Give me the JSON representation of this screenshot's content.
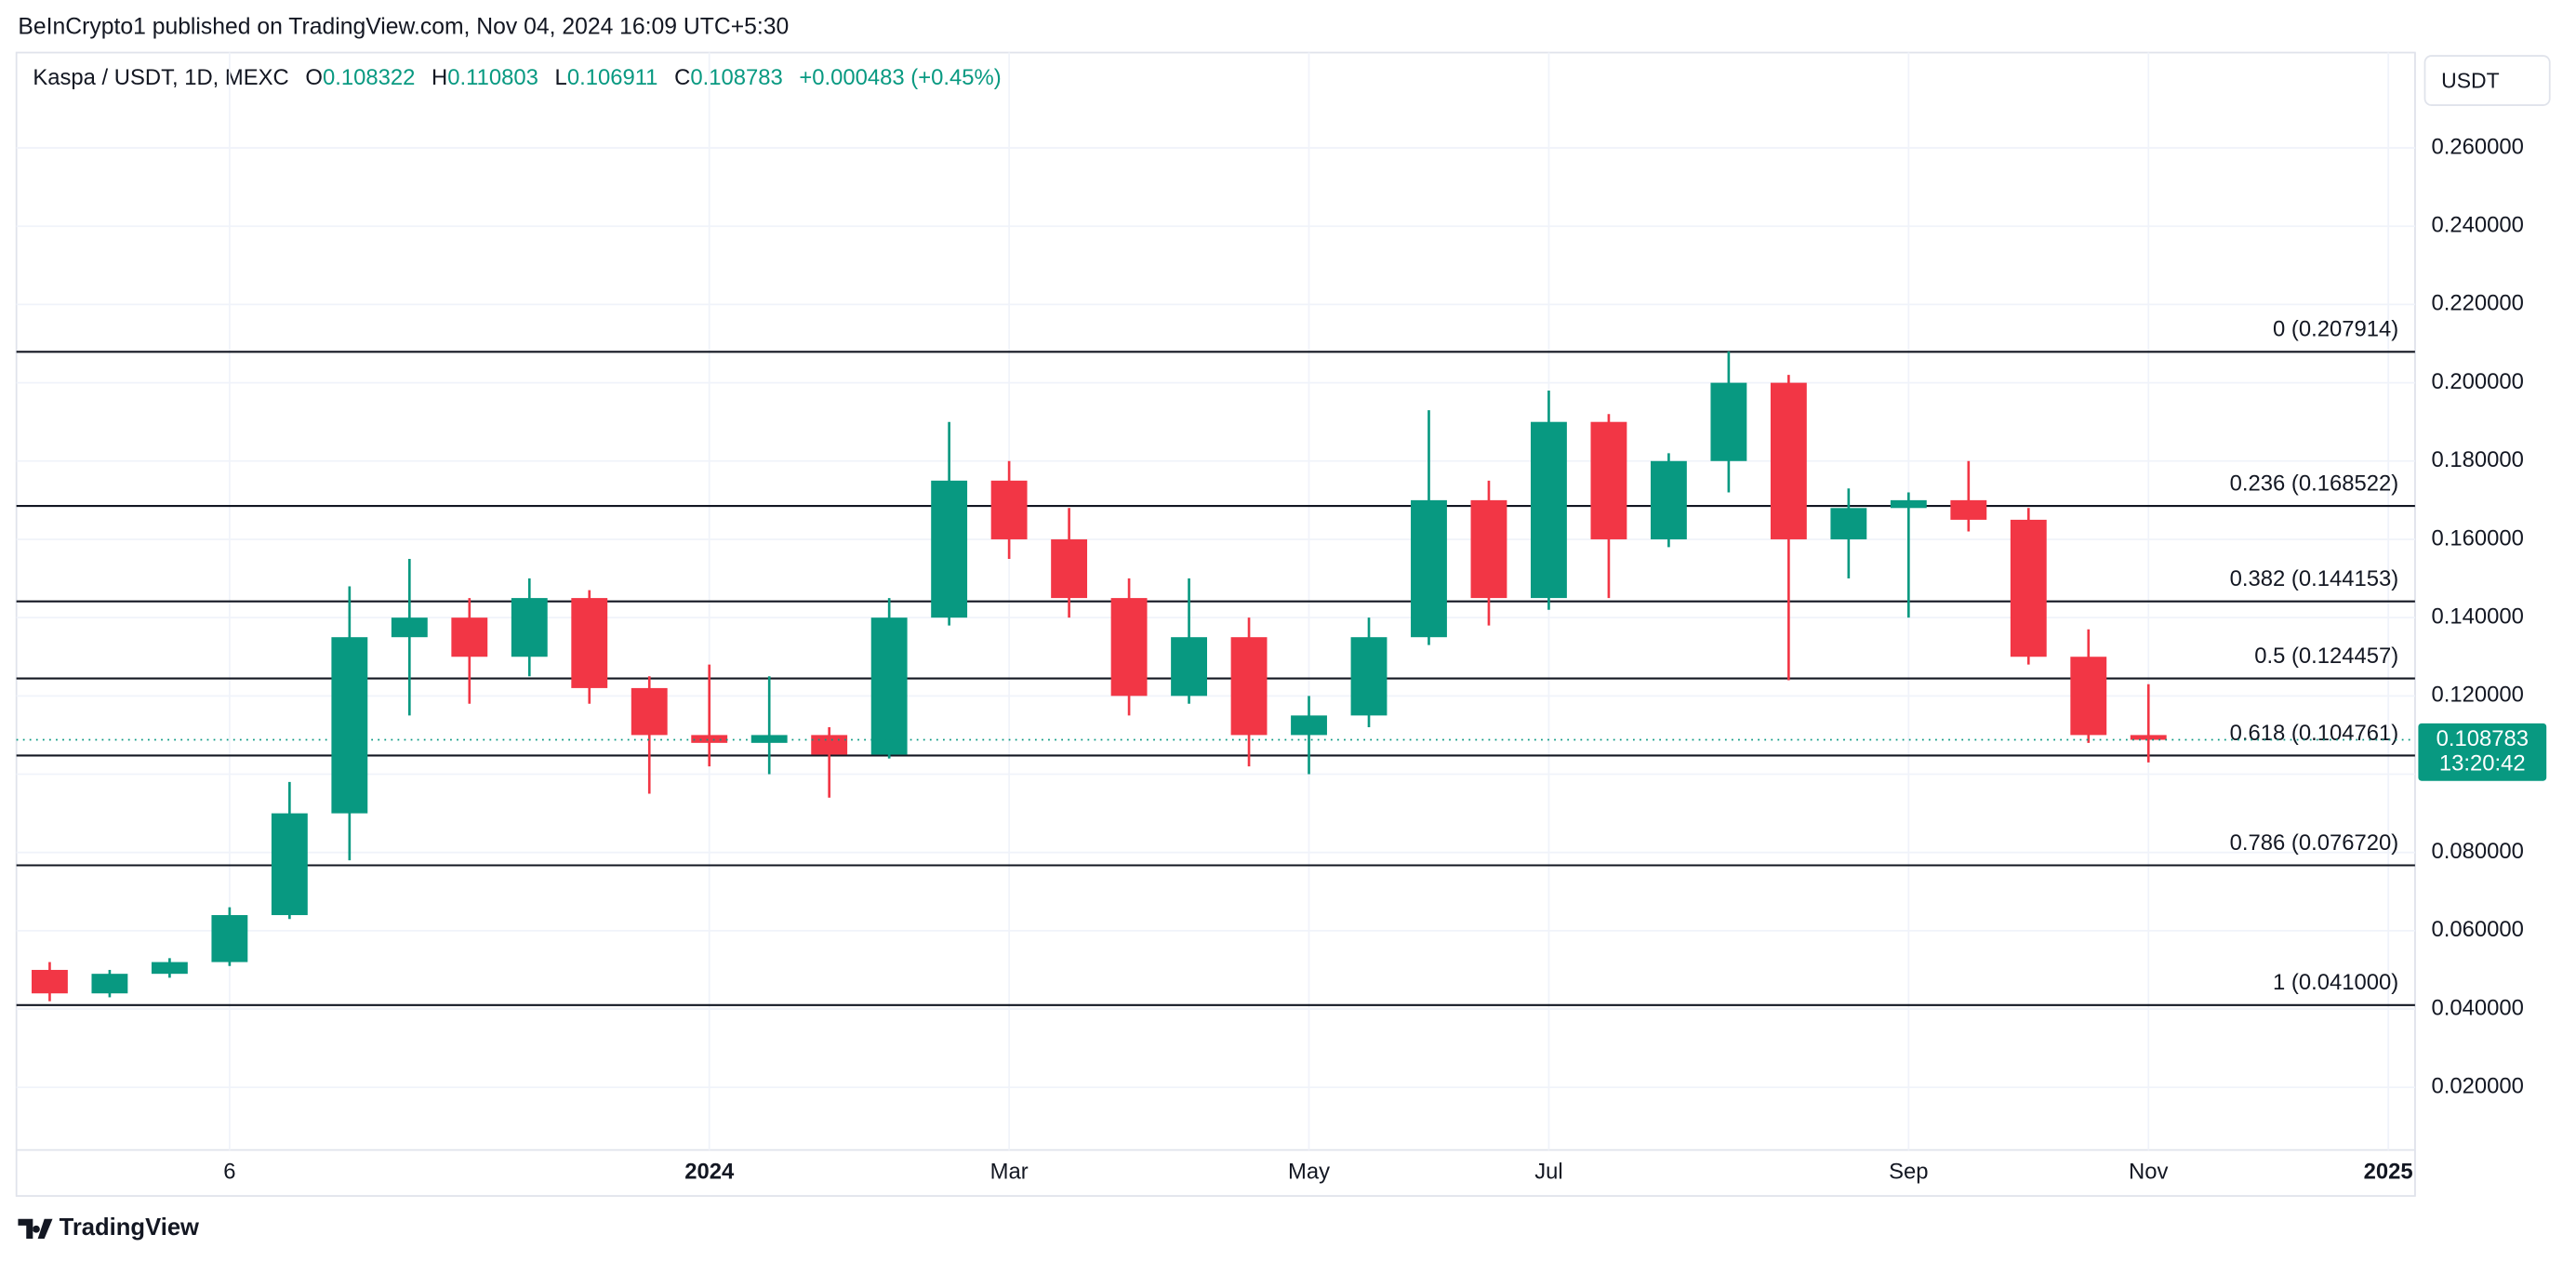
{
  "header": {
    "publisher": "BeInCrypto1 published on TradingView.com, Nov 04, 2024 16:09 UTC+5:30",
    "footer_logo": "TradingView",
    "currency_button": "USDT"
  },
  "chart_data": {
    "type": "candlestick",
    "symbol": "Kaspa / USDT, 1D, MEXC",
    "legend": {
      "o_label": "O",
      "o": "0.108322",
      "h_label": "H",
      "h": "0.110803",
      "l_label": "L",
      "l": "0.106911",
      "c_label": "C",
      "c": "0.108783",
      "change": "+0.000483 (+0.45%)"
    },
    "categories": [
      null,
      null,
      null,
      "6",
      null,
      null,
      null,
      null,
      null,
      null,
      null,
      "2024",
      null,
      null,
      null,
      null,
      "Mar",
      null,
      null,
      null,
      null,
      "May",
      null,
      null,
      null,
      "Jul",
      null,
      null,
      null,
      null,
      null,
      "Sep",
      null,
      null,
      null,
      "Nov",
      null,
      null,
      null,
      "2025"
    ],
    "series": [
      {
        "name": "Kaspa / USDT",
        "up_color": "#089981",
        "down_color": "#f23645",
        "open": [
          0.05,
          0.044,
          0.049,
          0.052,
          0.064,
          0.09,
          0.135,
          0.14,
          0.13,
          0.145,
          0.122,
          0.11,
          0.108,
          0.11,
          0.105,
          0.14,
          0.175,
          0.16,
          0.145,
          0.12,
          0.135,
          0.11,
          0.115,
          0.135,
          0.17,
          0.145,
          0.19,
          0.16,
          0.18,
          0.2,
          0.16,
          0.168,
          0.17,
          0.165,
          0.13,
          0.11,
          null,
          null,
          null,
          null
        ],
        "high": [
          0.052,
          0.05,
          0.053,
          0.066,
          0.098,
          0.148,
          0.155,
          0.145,
          0.15,
          0.147,
          0.125,
          0.128,
          0.125,
          0.112,
          0.145,
          0.19,
          0.18,
          0.168,
          0.15,
          0.15,
          0.14,
          0.12,
          0.14,
          0.193,
          0.175,
          0.198,
          0.192,
          0.182,
          0.208,
          0.202,
          0.173,
          0.172,
          0.18,
          0.168,
          0.137,
          0.123,
          null,
          null,
          null,
          null
        ],
        "low": [
          0.042,
          0.043,
          0.048,
          0.051,
          0.063,
          0.078,
          0.115,
          0.118,
          0.125,
          0.118,
          0.095,
          0.102,
          0.1,
          0.094,
          0.104,
          0.138,
          0.155,
          0.14,
          0.115,
          0.118,
          0.102,
          0.1,
          0.112,
          0.133,
          0.138,
          0.142,
          0.145,
          0.158,
          0.172,
          0.124,
          0.15,
          0.14,
          0.162,
          0.128,
          0.108,
          0.103,
          null,
          null,
          null,
          null
        ],
        "close": [
          0.044,
          0.049,
          0.052,
          0.064,
          0.09,
          0.135,
          0.14,
          0.13,
          0.145,
          0.122,
          0.11,
          0.108,
          0.11,
          0.105,
          0.14,
          0.175,
          0.16,
          0.145,
          0.12,
          0.135,
          0.11,
          0.115,
          0.135,
          0.17,
          0.145,
          0.19,
          0.16,
          0.18,
          0.2,
          0.16,
          0.168,
          0.17,
          0.165,
          0.13,
          0.11,
          0.108783,
          null,
          null,
          null,
          null
        ]
      }
    ],
    "ylim": [
      0.004,
      0.2831
    ],
    "yticks": [
      {
        "value": 0.02,
        "label": "0.020000"
      },
      {
        "value": 0.04,
        "label": "0.040000"
      },
      {
        "value": 0.06,
        "label": "0.060000"
      },
      {
        "value": 0.08,
        "label": "0.080000"
      },
      {
        "value": 0.1,
        "label": "0.100000"
      },
      {
        "value": 0.12,
        "label": "0.120000"
      },
      {
        "value": 0.14,
        "label": "0.140000"
      },
      {
        "value": 0.16,
        "label": "0.160000"
      },
      {
        "value": 0.18,
        "label": "0.180000"
      },
      {
        "value": 0.2,
        "label": "0.200000"
      },
      {
        "value": 0.22,
        "label": "0.220000"
      },
      {
        "value": 0.24,
        "label": "0.240000"
      },
      {
        "value": 0.26,
        "label": "0.260000"
      }
    ],
    "grid": true,
    "fib_levels": [
      {
        "value": 0.207914,
        "label": "0 (0.207914)"
      },
      {
        "value": 0.168522,
        "label": "0.236 (0.168522)"
      },
      {
        "value": 0.144153,
        "label": "0.382 (0.144153)"
      },
      {
        "value": 0.124457,
        "label": "0.5 (0.124457)"
      },
      {
        "value": 0.104761,
        "label": "0.618 (0.104761)"
      },
      {
        "value": 0.07672,
        "label": "0.786 (0.076720)"
      },
      {
        "value": 0.041,
        "label": "1 (0.041000)"
      }
    ],
    "last_price": {
      "value": 0.108783,
      "label": "0.108783",
      "countdown": "13:20:42",
      "color": "#089981"
    }
  }
}
